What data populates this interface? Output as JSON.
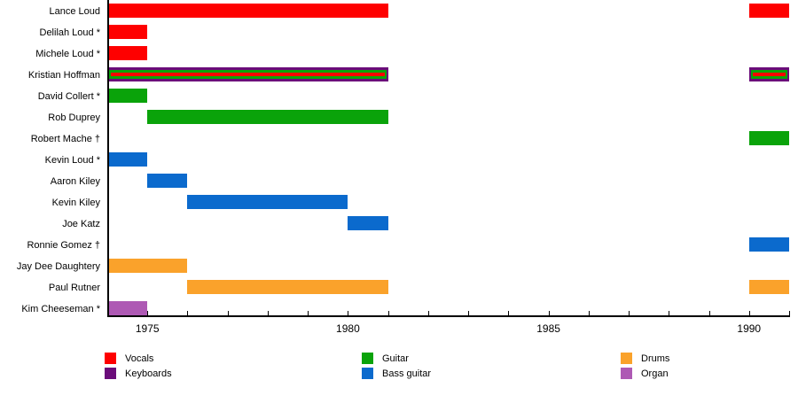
{
  "chart_data": {
    "type": "bar",
    "variant": "membership-timeline-gantt",
    "title": "",
    "xlabel": "",
    "ylabel": "",
    "grid": false,
    "legend_position": "below-chart-three-columns",
    "x_axis": {
      "min": 1974,
      "max": 1991,
      "labeled_ticks": [
        1975,
        1980,
        1985,
        1990
      ],
      "minor_tick_interval": 1
    },
    "legend": [
      {
        "label": "Vocals",
        "color": "#fe0000"
      },
      {
        "label": "Keyboards",
        "color": "#6b0c7a"
      },
      {
        "label": "Guitar",
        "color": "#0aa30a"
      },
      {
        "label": "Bass guitar",
        "color": "#0b6acd"
      },
      {
        "label": "Drums",
        "color": "#faa22b"
      },
      {
        "label": "Organ",
        "color": "#ae59b4"
      }
    ],
    "members": [
      {
        "name": "Lance Loud",
        "segments": [
          {
            "start": 1974,
            "end": 1981,
            "instruments": [
              "Vocals"
            ]
          },
          {
            "start": 1990,
            "end": 1991,
            "instruments": [
              "Vocals"
            ]
          }
        ]
      },
      {
        "name": "Delilah Loud *",
        "segments": [
          {
            "start": 1974,
            "end": 1975,
            "instruments": [
              "Vocals"
            ]
          }
        ]
      },
      {
        "name": "Michele Loud *",
        "segments": [
          {
            "start": 1974,
            "end": 1975,
            "instruments": [
              "Vocals"
            ]
          }
        ]
      },
      {
        "name": "Kristian Hoffman",
        "segments": [
          {
            "start": 1974,
            "end": 1981,
            "instruments": [
              "Keyboards",
              "Guitar",
              "Vocals"
            ]
          },
          {
            "start": 1990,
            "end": 1991,
            "instruments": [
              "Keyboards",
              "Guitar",
              "Vocals"
            ]
          }
        ]
      },
      {
        "name": "David Collert *",
        "segments": [
          {
            "start": 1974,
            "end": 1975,
            "instruments": [
              "Guitar"
            ]
          }
        ]
      },
      {
        "name": "Rob Duprey",
        "segments": [
          {
            "start": 1975,
            "end": 1981,
            "instruments": [
              "Guitar"
            ]
          }
        ]
      },
      {
        "name": "Robert Mache †",
        "segments": [
          {
            "start": 1990,
            "end": 1991,
            "instruments": [
              "Guitar"
            ]
          }
        ]
      },
      {
        "name": "Kevin Loud *",
        "segments": [
          {
            "start": 1974,
            "end": 1975,
            "instruments": [
              "Bass guitar"
            ]
          }
        ]
      },
      {
        "name": "Aaron Kiley",
        "segments": [
          {
            "start": 1975,
            "end": 1976,
            "instruments": [
              "Bass guitar"
            ]
          }
        ]
      },
      {
        "name": "Kevin Kiley",
        "segments": [
          {
            "start": 1976,
            "end": 1980,
            "instruments": [
              "Bass guitar"
            ]
          }
        ]
      },
      {
        "name": "Joe Katz",
        "segments": [
          {
            "start": 1980,
            "end": 1981,
            "instruments": [
              "Bass guitar"
            ]
          }
        ]
      },
      {
        "name": "Ronnie Gomez †",
        "segments": [
          {
            "start": 1990,
            "end": 1991,
            "instruments": [
              "Bass guitar"
            ]
          }
        ]
      },
      {
        "name": "Jay Dee Daughtery",
        "segments": [
          {
            "start": 1974,
            "end": 1976,
            "instruments": [
              "Drums"
            ]
          }
        ]
      },
      {
        "name": "Paul Rutner",
        "segments": [
          {
            "start": 1976,
            "end": 1981,
            "instruments": [
              "Drums"
            ]
          },
          {
            "start": 1990,
            "end": 1991,
            "instruments": [
              "Drums"
            ]
          }
        ]
      },
      {
        "name": "Kim Cheeseman *",
        "segments": [
          {
            "start": 1974,
            "end": 1975,
            "instruments": [
              "Organ"
            ]
          }
        ]
      }
    ]
  }
}
